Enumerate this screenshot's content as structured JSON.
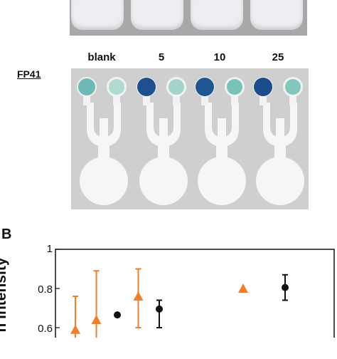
{
  "panel_b_label": "B",
  "fp_label": "FP41",
  "lanes": [
    "blank",
    "5",
    "10",
    "25"
  ],
  "chart_data": {
    "type": "scatter",
    "title": "",
    "xlabel": "",
    "ylabel": "n Intensity",
    "ylim": [
      0.55,
      1
    ],
    "yticks": [
      "1",
      "0.8",
      "0.6"
    ],
    "ytick_values": [
      1,
      0.8,
      0.6
    ],
    "series": [
      {
        "marker": "triangle",
        "color": "#f07f2a",
        "points": [
          {
            "x": 0,
            "y": 0.59,
            "err_hi": 0.76
          },
          {
            "x": 1,
            "y": 0.64,
            "err_hi": 0.89
          },
          {
            "x": 3,
            "y": 0.76,
            "err_lo": 0.6,
            "err_hi": 0.9
          },
          {
            "x": 8,
            "y": 0.8
          }
        ]
      },
      {
        "marker": "circle",
        "color": "#111111",
        "points": [
          {
            "x": 2,
            "y": 0.665
          },
          {
            "x": 4,
            "y": 0.695,
            "err_lo": 0.6,
            "err_hi": 0.74
          },
          {
            "x": 10,
            "y": 0.805,
            "err_lo": 0.74,
            "err_hi": 0.87
          }
        ]
      }
    ]
  }
}
